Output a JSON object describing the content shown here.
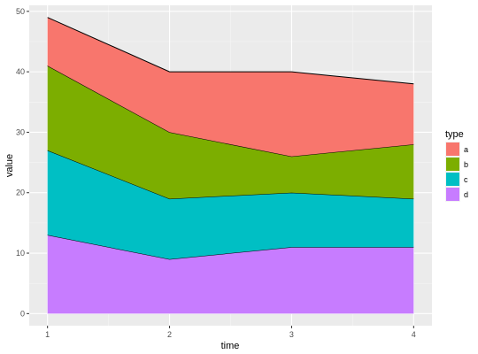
{
  "chart_data": {
    "type": "area",
    "stacked": true,
    "xlabel": "time",
    "ylabel": "value",
    "x": [
      1,
      2,
      3,
      4
    ],
    "xlim": [
      0.85,
      4.15
    ],
    "ylim": [
      -2,
      51
    ],
    "x_ticks": [
      1,
      2,
      3,
      4
    ],
    "y_ticks": [
      0,
      10,
      20,
      30,
      40,
      50
    ],
    "grid": true,
    "legend": {
      "title": "type",
      "position": "right"
    },
    "series": [
      {
        "name": "a",
        "values": [
          8,
          10,
          14,
          10
        ],
        "color": "#F8766D"
      },
      {
        "name": "b",
        "values": [
          14,
          11,
          6,
          9
        ],
        "color": "#7CAE00"
      },
      {
        "name": "c",
        "values": [
          14,
          10,
          9,
          8
        ],
        "color": "#00BFC4"
      },
      {
        "name": "d",
        "values": [
          13,
          9,
          11,
          11
        ],
        "color": "#C77CFF"
      }
    ]
  }
}
